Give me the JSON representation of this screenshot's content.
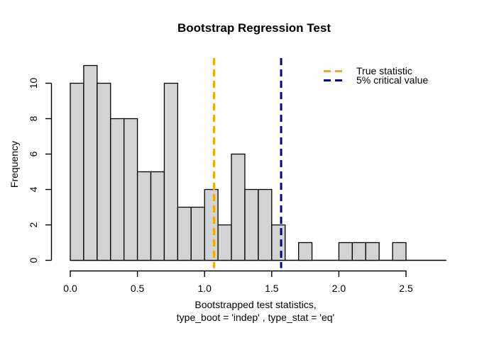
{
  "title": "Bootstrap Regression Test",
  "y_axis": {
    "label": "Frequency",
    "ticks": [
      "0",
      "2",
      "4",
      "6",
      "8",
      "10"
    ]
  },
  "x_axis": {
    "label_line1": "Bootstrapped test statistics,",
    "label_line2": "type_boot = 'indep' , type_stat = 'eq'",
    "ticks": [
      "0.0",
      "0.5",
      "1.0",
      "1.5",
      "2.0",
      "2.5"
    ]
  },
  "chart_data": {
    "type": "bar",
    "subtype": "histogram",
    "title": "Bootstrap Regression Test",
    "xlabel": "Bootstrapped test statistics, type_boot = 'indep' , type_stat = 'eq'",
    "ylabel": "Frequency",
    "bin_start": 0.0,
    "bin_width": 0.1,
    "counts": [
      10,
      11,
      10,
      8,
      8,
      5,
      5,
      10,
      3,
      3,
      4,
      2,
      6,
      4,
      4,
      2,
      0,
      1,
      0,
      0,
      1,
      1,
      1,
      0,
      1
    ],
    "x_tick_values": [
      0.0,
      0.5,
      1.0,
      1.5,
      2.0,
      2.5
    ],
    "y_tick_values": [
      0,
      2,
      4,
      6,
      8,
      10
    ],
    "xlim": [
      0.0,
      2.8
    ],
    "ylim": [
      0,
      11
    ],
    "grid": false,
    "legend_position": "topright",
    "bar_fill": "#d3d3d3",
    "bar_border": "#000000",
    "background": "#ffffff",
    "vlines": [
      {
        "x": 1.07,
        "color": "#ffa500",
        "style": "dashed",
        "label": "True statistic"
      },
      {
        "x": 1.57,
        "color": "#000080",
        "style": "dashed",
        "label": "5% critical value"
      }
    ]
  }
}
